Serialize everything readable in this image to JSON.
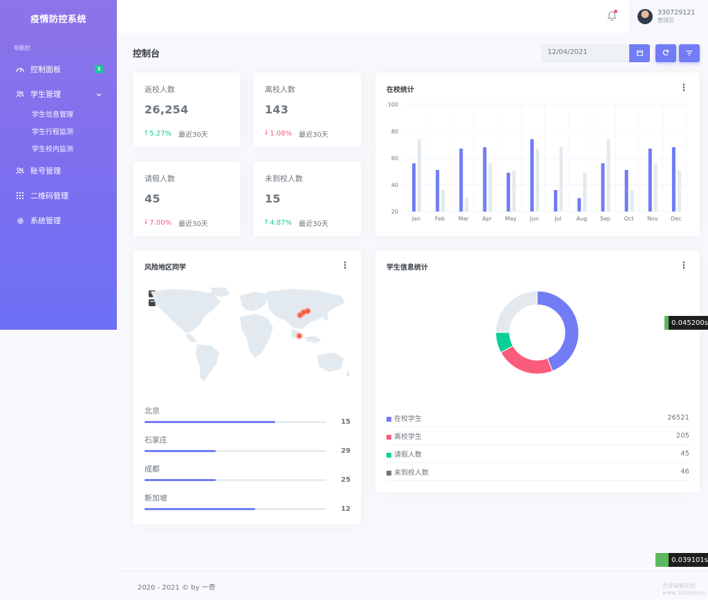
{
  "sidebar": {
    "brand": "疫情防控系统",
    "heading": "导航栏",
    "items": [
      {
        "label": "控制面板",
        "badge": "3"
      },
      {
        "label": "学生管理"
      },
      {
        "label": "账号管理"
      },
      {
        "label": "二维码管理"
      },
      {
        "label": "系统管理"
      }
    ],
    "sub_items": [
      "学生信息管理",
      "学生行程监测",
      "学生校内监测"
    ]
  },
  "topbar": {
    "username": "330729121",
    "role": "管理员"
  },
  "page": {
    "title": "控制台",
    "date": "12/04/2021"
  },
  "stats": [
    {
      "title": "返校人数",
      "value": "26,254",
      "change": "5.27%",
      "direction": "up",
      "since": "最近30天"
    },
    {
      "title": "离校人数",
      "value": "143",
      "change": "1.08%",
      "direction": "down",
      "since": "最近30天"
    },
    {
      "title": "请假人数",
      "value": "45",
      "change": "7.00%",
      "direction": "down",
      "since": "最近30天"
    },
    {
      "title": "未到校人数",
      "value": "15",
      "change": "4.87%",
      "direction": "up",
      "since": "最近30天"
    }
  ],
  "bar_card": {
    "title": "在校统计"
  },
  "map_card": {
    "title": "风险地区同学",
    "zoom_in": "+",
    "zoom_out": "−",
    "locations": [
      {
        "name": "北京",
        "value": "15",
        "percent": 72
      },
      {
        "name": "石家庄",
        "value": "29",
        "percent": 39
      },
      {
        "name": "成都",
        "value": "25",
        "percent": 39
      },
      {
        "name": "新加坡",
        "value": "12",
        "percent": 61
      }
    ]
  },
  "donut_card": {
    "title": "学生信息统计",
    "legend": [
      {
        "label": "在校学生",
        "value": "26521",
        "color": "#727cf5"
      },
      {
        "label": "离校学生",
        "value": "205",
        "color": "#fa5c7c"
      },
      {
        "label": "请假人数",
        "value": "45",
        "color": "#0acf97"
      },
      {
        "label": "未到校人数",
        "value": "46",
        "color": "#6c757d"
      }
    ]
  },
  "timings": [
    "0.045200s",
    "0.039101s"
  ],
  "footer": "2020 - 2021 © by 一奇",
  "watermark": [
    "吾爱破解论坛",
    "www.52pojie.cn"
  ],
  "chart_data": [
    {
      "type": "bar",
      "title": "在校统计",
      "categories": [
        "Jan",
        "Feb",
        "Mar",
        "Apr",
        "May",
        "Jun",
        "Jul",
        "Aug",
        "Sep",
        "Oct",
        "Nov",
        "Dec"
      ],
      "series": [
        {
          "values": [
            56,
            51,
            67,
            68,
            49,
            74,
            36,
            30,
            56,
            51,
            67,
            68
          ],
          "color": "#727cf5"
        },
        {
          "values": [
            74,
            36,
            30,
            56,
            51,
            67,
            68,
            49,
            74,
            36,
            56,
            51
          ],
          "color": "#e3eaef"
        }
      ],
      "ylim": [
        20,
        100
      ],
      "yticks": [
        20,
        40,
        60,
        80,
        100
      ],
      "grid": true
    },
    {
      "type": "pie",
      "title": "学生信息统计",
      "labels": [
        "在校学生",
        "离校学生",
        "请假人数",
        "未到校人数"
      ],
      "values": [
        44,
        23,
        8,
        25
      ],
      "colors": [
        "#727cf5",
        "#fa5c7c",
        "#0acf97",
        "#e3eaef"
      ]
    }
  ]
}
